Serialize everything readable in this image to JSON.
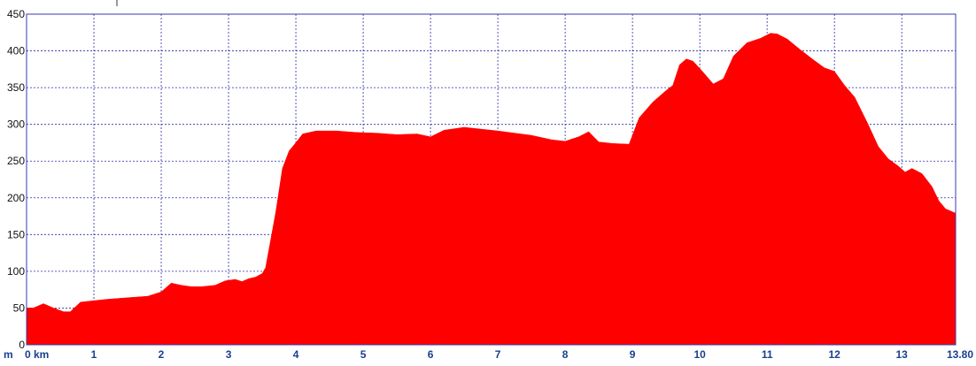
{
  "chart_data": {
    "type": "area",
    "title": "",
    "xlabel": "",
    "ylabel": "",
    "x_unit": "km",
    "y_unit": "m",
    "xlim": [
      0,
      13.8
    ],
    "ylim": [
      0,
      450
    ],
    "xticks": [
      0,
      1,
      2,
      3,
      4,
      5,
      6,
      7,
      8,
      9,
      10,
      11,
      12,
      13,
      13.8
    ],
    "xtick_labels": [
      "0 km",
      "1",
      "2",
      "3",
      "4",
      "5",
      "6",
      "7",
      "8",
      "9",
      "10",
      "11",
      "12",
      "13",
      "13.80"
    ],
    "yticks": [
      0,
      50,
      100,
      150,
      200,
      250,
      300,
      350,
      400,
      450
    ],
    "ytick_labels": [
      "0",
      "50",
      "100",
      "150",
      "200",
      "250",
      "300",
      "350",
      "400",
      "450"
    ],
    "grid": true,
    "legend": "none",
    "colors": {
      "fill": "#ff0000",
      "grid": "#2a2aa8",
      "frame": "#3a3ab0"
    },
    "series": [
      {
        "x": [
          0,
          0.1,
          0.25,
          0.4,
          0.55,
          0.65,
          0.8,
          1.0,
          1.2,
          1.5,
          1.8,
          2.0,
          2.15,
          2.3,
          2.45,
          2.6,
          2.8,
          2.95,
          3.1,
          3.2,
          3.3,
          3.4,
          3.5,
          3.55,
          3.6,
          3.7,
          3.8,
          3.9,
          4.0,
          4.1,
          4.3,
          4.6,
          4.9,
          5.2,
          5.5,
          5.8,
          6.0,
          6.2,
          6.5,
          7.0,
          7.5,
          7.8,
          8.0,
          8.2,
          8.35,
          8.5,
          8.7,
          8.95,
          9.1,
          9.3,
          9.5,
          9.6,
          9.7,
          9.8,
          9.9,
          10.05,
          10.2,
          10.35,
          10.5,
          10.7,
          10.9,
          11.05,
          11.15,
          11.3,
          11.5,
          11.7,
          11.85,
          12.0,
          12.15,
          12.3,
          12.5,
          12.65,
          12.8,
          12.95,
          13.05,
          13.15,
          13.3,
          13.45,
          13.55,
          13.65,
          13.8
        ],
        "y": [
          50,
          50,
          56,
          50,
          45,
          45,
          58,
          60,
          62,
          64,
          66,
          72,
          84,
          81,
          79,
          79,
          81,
          87,
          89,
          86,
          90,
          92,
          97,
          105,
          130,
          180,
          240,
          264,
          275,
          287,
          291,
          291,
          289,
          288,
          286,
          287,
          283,
          292,
          296,
          291,
          285,
          279,
          277,
          283,
          290,
          276,
          274,
          273,
          309,
          330,
          346,
          353,
          381,
          389,
          386,
          371,
          355,
          362,
          393,
          411,
          417,
          424,
          423,
          416,
          401,
          387,
          377,
          372,
          353,
          337,
          300,
          270,
          253,
          243,
          235,
          240,
          233,
          215,
          196,
          185,
          179
        ]
      }
    ]
  }
}
